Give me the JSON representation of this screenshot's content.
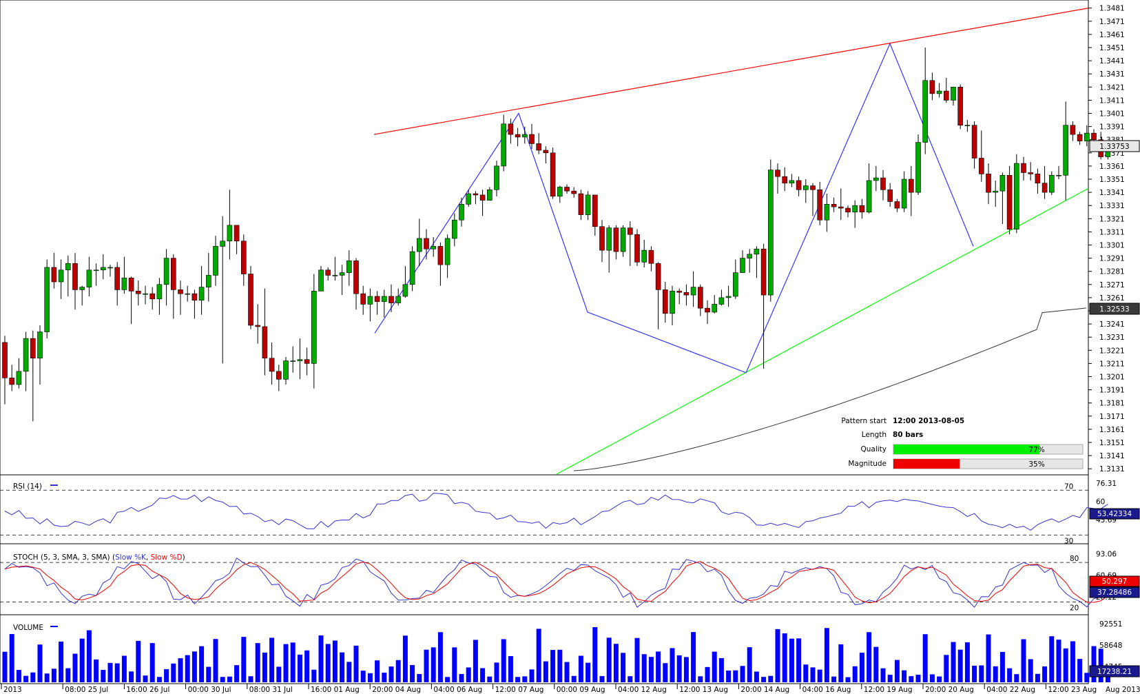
{
  "chart_data": {
    "type": "candlestick",
    "instrument_note": "",
    "price_axis": {
      "ticks": [
        "1.3481",
        "1.3471",
        "1.3461",
        "1.3451",
        "1.3441",
        "1.3431",
        "1.3421",
        "1.3411",
        "1.3401",
        "1.3391",
        "1.3381",
        "1.3371",
        "1.3361",
        "1.3351",
        "1.3341",
        "1.3331",
        "1.3321",
        "1.3311",
        "1.3301",
        "1.3291",
        "1.3281",
        "1.3271",
        "1.3261",
        "1.3251",
        "1.3241",
        "1.3231",
        "1.3221",
        "1.3211",
        "1.3201",
        "1.3191",
        "1.3181",
        "1.3171",
        "1.3161",
        "1.3151",
        "1.3141",
        "1.3131"
      ],
      "range": [
        1.3129,
        1.3484
      ],
      "current_price_label": "1.33753",
      "sma_label": "1.32533"
    },
    "time_axis": {
      "labels": [
        "2013",
        "08:00 25 Jul",
        "16:00 26 Jul",
        "00:00 30 Jul",
        "08:00 31 Jul",
        "16:00 01 Aug",
        "20:00 04 Aug",
        "04:00 06 Aug",
        "12:00 07 Aug",
        "00:00 09 Aug",
        "04:00 12 Aug",
        "12:00 13 Aug",
        "20:00 14 Aug",
        "04:00 16 Aug",
        "12:00 19 Aug",
        "20:00 20 Aug",
        "04:00 22 Aug",
        "12:00 23 Aug"
      ],
      "end_label": "Aug 2013"
    },
    "candles": [
      [
        1.3227,
        1.32,
        1.3232,
        1.318
      ],
      [
        1.32,
        1.3195,
        1.321,
        1.319
      ],
      [
        1.3195,
        1.3205,
        1.3215,
        1.3192
      ],
      [
        1.3205,
        1.323,
        1.3235,
        1.319
      ],
      [
        1.323,
        1.3215,
        1.3236,
        1.3167
      ],
      [
        1.3215,
        1.3235,
        1.324,
        1.3195
      ],
      [
        1.3235,
        1.3284,
        1.329,
        1.323
      ],
      [
        1.3284,
        1.3273,
        1.3295,
        1.3268
      ],
      [
        1.3273,
        1.3282,
        1.329,
        1.326
      ],
      [
        1.3282,
        1.3287,
        1.3293,
        1.3262
      ],
      [
        1.3287,
        1.3267,
        1.3295,
        1.3252
      ],
      [
        1.3267,
        1.3269,
        1.327,
        1.3255
      ],
      [
        1.3269,
        1.3282,
        1.3292,
        1.3262
      ],
      [
        1.3282,
        1.3282,
        1.3287,
        1.327
      ],
      [
        1.3282,
        1.3284,
        1.3294,
        1.3275
      ],
      [
        1.3284,
        1.3284,
        1.3286,
        1.3277
      ],
      [
        1.3284,
        1.3267,
        1.3288,
        1.3255
      ],
      [
        1.3267,
        1.3276,
        1.3292,
        1.3264
      ],
      [
        1.3276,
        1.3266,
        1.3277,
        1.3241
      ],
      [
        1.3266,
        1.3264,
        1.3274,
        1.3255
      ],
      [
        1.3264,
        1.3264,
        1.327,
        1.3256
      ],
      [
        1.3264,
        1.326,
        1.3269,
        1.3252
      ],
      [
        1.326,
        1.3271,
        1.3276,
        1.3248
      ],
      [
        1.3271,
        1.3291,
        1.3298,
        1.3255
      ],
      [
        1.3291,
        1.3267,
        1.3294,
        1.3245
      ],
      [
        1.3267,
        1.3264,
        1.3274,
        1.3248
      ],
      [
        1.3264,
        1.3264,
        1.327,
        1.3258
      ],
      [
        1.3264,
        1.3259,
        1.3267,
        1.3245
      ],
      [
        1.3259,
        1.3269,
        1.3285,
        1.3248
      ],
      [
        1.3269,
        1.3278,
        1.3295,
        1.3258
      ],
      [
        1.3278,
        1.33,
        1.3308,
        1.327
      ],
      [
        1.33,
        1.3304,
        1.3323,
        1.3211
      ],
      [
        1.3304,
        1.3316,
        1.3343,
        1.329
      ],
      [
        1.3316,
        1.3304,
        1.3313,
        1.3294
      ],
      [
        1.3304,
        1.3279,
        1.3309,
        1.327
      ],
      [
        1.3279,
        1.324,
        1.3285,
        1.3237
      ],
      [
        1.324,
        1.3239,
        1.3256,
        1.3226
      ],
      [
        1.3239,
        1.3215,
        1.3268,
        1.3202
      ],
      [
        1.3215,
        1.3205,
        1.3227,
        1.3195
      ],
      [
        1.3205,
        1.3199,
        1.321,
        1.319
      ],
      [
        1.3199,
        1.3213,
        1.3216,
        1.3195
      ],
      [
        1.3213,
        1.3213,
        1.3224,
        1.3204
      ],
      [
        1.3213,
        1.3214,
        1.323,
        1.3199
      ],
      [
        1.3214,
        1.3211,
        1.3223,
        1.3202
      ],
      [
        1.3211,
        1.3266,
        1.3279,
        1.3192
      ],
      [
        1.3266,
        1.3282,
        1.3285,
        1.3266
      ],
      [
        1.3282,
        1.3278,
        1.3284,
        1.3274
      ],
      [
        1.3278,
        1.3278,
        1.3292,
        1.3274
      ],
      [
        1.3278,
        1.328,
        1.3286,
        1.3263
      ],
      [
        1.328,
        1.3289,
        1.3297,
        1.327
      ],
      [
        1.3289,
        1.3264,
        1.3291,
        1.3252
      ],
      [
        1.3264,
        1.3256,
        1.327,
        1.3248
      ],
      [
        1.3256,
        1.3262,
        1.3268,
        1.3243
      ],
      [
        1.3262,
        1.3258,
        1.3266,
        1.3248
      ],
      [
        1.3258,
        1.3262,
        1.3267,
        1.3246
      ],
      [
        1.3262,
        1.3257,
        1.3271,
        1.325
      ],
      [
        1.3257,
        1.3262,
        1.3268,
        1.3255
      ],
      [
        1.3262,
        1.3271,
        1.3285,
        1.3261
      ],
      [
        1.3271,
        1.3296,
        1.33,
        1.3266
      ],
      [
        1.3296,
        1.3306,
        1.3321,
        1.3285
      ],
      [
        1.3306,
        1.3298,
        1.3313,
        1.329
      ],
      [
        1.3298,
        1.33,
        1.3307,
        1.3292
      ],
      [
        1.33,
        1.3286,
        1.3303,
        1.327
      ],
      [
        1.3286,
        1.3306,
        1.3309,
        1.3276
      ],
      [
        1.3306,
        1.332,
        1.3325,
        1.33
      ],
      [
        1.332,
        1.3332,
        1.3337,
        1.3315
      ],
      [
        1.3332,
        1.334,
        1.3343,
        1.333
      ],
      [
        1.334,
        1.3339,
        1.3342,
        1.3332
      ],
      [
        1.3339,
        1.3335,
        1.3343,
        1.3323
      ],
      [
        1.3335,
        1.3343,
        1.3345,
        1.3335
      ],
      [
        1.3343,
        1.3361,
        1.3365,
        1.3338
      ],
      [
        1.3361,
        1.3393,
        1.34,
        1.3357
      ],
      [
        1.3393,
        1.3385,
        1.3397,
        1.3378
      ],
      [
        1.3385,
        1.3383,
        1.339,
        1.3376
      ],
      [
        1.3383,
        1.3385,
        1.3391,
        1.3378
      ],
      [
        1.3385,
        1.3378,
        1.3393,
        1.3374
      ],
      [
        1.3378,
        1.3373,
        1.3386,
        1.337
      ],
      [
        1.3373,
        1.3371,
        1.3376,
        1.3363
      ],
      [
        1.3371,
        1.3338,
        1.3375,
        1.3336
      ],
      [
        1.3338,
        1.3345,
        1.3346,
        1.3333
      ],
      [
        1.3345,
        1.3342,
        1.3347,
        1.334
      ],
      [
        1.3342,
        1.334,
        1.3345,
        1.3337
      ],
      [
        1.334,
        1.3324,
        1.3343,
        1.332
      ],
      [
        1.3324,
        1.3339,
        1.3342,
        1.332
      ],
      [
        1.3339,
        1.3315,
        1.3337,
        1.3308
      ],
      [
        1.3315,
        1.3297,
        1.332,
        1.3288
      ],
      [
        1.3297,
        1.3314,
        1.3316,
        1.328
      ],
      [
        1.3314,
        1.3296,
        1.3316,
        1.329
      ],
      [
        1.3296,
        1.3314,
        1.3316,
        1.3292
      ],
      [
        1.3314,
        1.3309,
        1.3319,
        1.3285
      ],
      [
        1.3309,
        1.3288,
        1.3313,
        1.3285
      ],
      [
        1.3288,
        1.3297,
        1.3305,
        1.3284
      ],
      [
        1.3297,
        1.3287,
        1.33,
        1.3281
      ],
      [
        1.3287,
        1.3267,
        1.3288,
        1.3237
      ],
      [
        1.3267,
        1.3249,
        1.3273,
        1.3242
      ],
      [
        1.3249,
        1.3266,
        1.327,
        1.324
      ],
      [
        1.3266,
        1.3265,
        1.3268,
        1.3256
      ],
      [
        1.3265,
        1.3263,
        1.3271,
        1.3255
      ],
      [
        1.3263,
        1.3269,
        1.3281,
        1.3254
      ],
      [
        1.3269,
        1.3253,
        1.3271,
        1.3247
      ],
      [
        1.3253,
        1.325,
        1.3259,
        1.3241
      ],
      [
        1.325,
        1.3256,
        1.3263,
        1.3249
      ],
      [
        1.3256,
        1.3261,
        1.3267,
        1.3255
      ],
      [
        1.3261,
        1.3262,
        1.327,
        1.3254
      ],
      [
        1.3262,
        1.328,
        1.329,
        1.326
      ],
      [
        1.328,
        1.3291,
        1.3297,
        1.328
      ],
      [
        1.3291,
        1.3294,
        1.3298,
        1.328
      ],
      [
        1.3294,
        1.3298,
        1.33,
        1.3276
      ],
      [
        1.3298,
        1.3263,
        1.3302,
        1.3207
      ],
      [
        1.3263,
        1.3358,
        1.3366,
        1.3258
      ],
      [
        1.3358,
        1.3353,
        1.3363,
        1.334
      ],
      [
        1.3353,
        1.3348,
        1.336,
        1.3342
      ],
      [
        1.3348,
        1.335,
        1.3355,
        1.3345
      ],
      [
        1.335,
        1.3343,
        1.3353,
        1.3338
      ],
      [
        1.3343,
        1.3346,
        1.3351,
        1.3333
      ],
      [
        1.3346,
        1.3343,
        1.3348,
        1.3323
      ],
      [
        1.3343,
        1.332,
        1.3349,
        1.3316
      ],
      [
        1.332,
        1.3332,
        1.334,
        1.3311
      ],
      [
        1.3332,
        1.333,
        1.3337,
        1.3326
      ],
      [
        1.333,
        1.3329,
        1.3344,
        1.332
      ],
      [
        1.3329,
        1.3326,
        1.3331,
        1.3322
      ],
      [
        1.3326,
        1.3331,
        1.3335,
        1.3314
      ],
      [
        1.3331,
        1.3326,
        1.3336,
        1.3321
      ],
      [
        1.3326,
        1.335,
        1.3363,
        1.3325
      ],
      [
        1.335,
        1.3352,
        1.3361,
        1.3342
      ],
      [
        1.3352,
        1.3343,
        1.3358,
        1.3335
      ],
      [
        1.3343,
        1.3334,
        1.3348,
        1.333
      ],
      [
        1.3334,
        1.3329,
        1.3336,
        1.3326
      ],
      [
        1.3329,
        1.3351,
        1.3357,
        1.3326
      ],
      [
        1.3351,
        1.3341,
        1.3361,
        1.3323
      ],
      [
        1.3341,
        1.3379,
        1.3385,
        1.3339
      ],
      [
        1.3379,
        1.3426,
        1.3451,
        1.337
      ],
      [
        1.3426,
        1.3416,
        1.3432,
        1.3411
      ],
      [
        1.3416,
        1.3418,
        1.3424,
        1.3413
      ],
      [
        1.3418,
        1.3411,
        1.3428,
        1.3409
      ],
      [
        1.3411,
        1.3421,
        1.3421,
        1.3407
      ],
      [
        1.3421,
        1.3392,
        1.3423,
        1.3389
      ],
      [
        1.3392,
        1.3392,
        1.3396,
        1.3387
      ],
      [
        1.3392,
        1.3367,
        1.3395,
        1.3359
      ],
      [
        1.3367,
        1.3355,
        1.3388,
        1.3349
      ],
      [
        1.3355,
        1.3341,
        1.3363,
        1.3332
      ],
      [
        1.3341,
        1.3342,
        1.335,
        1.333
      ],
      [
        1.3342,
        1.3354,
        1.3356,
        1.3317
      ],
      [
        1.3354,
        1.3313,
        1.3361,
        1.3309
      ],
      [
        1.3313,
        1.3363,
        1.337,
        1.331
      ],
      [
        1.3363,
        1.3356,
        1.3368,
        1.335
      ],
      [
        1.3356,
        1.3355,
        1.3364,
        1.335
      ],
      [
        1.3355,
        1.3348,
        1.3359,
        1.334
      ],
      [
        1.3348,
        1.3341,
        1.3361,
        1.3336
      ],
      [
        1.3341,
        1.3354,
        1.3357,
        1.3339
      ],
      [
        1.3354,
        1.3354,
        1.3361,
        1.3351
      ],
      [
        1.3354,
        1.3392,
        1.341,
        1.3335
      ],
      [
        1.3392,
        1.3385,
        1.3395,
        1.338
      ],
      [
        1.3385,
        1.338,
        1.3387,
        1.3377
      ],
      [
        1.338,
        1.3386,
        1.3392,
        1.3376
      ],
      [
        1.3386,
        1.3381,
        1.3389,
        1.3372
      ],
      [
        1.3381,
        1.3368,
        1.3387,
        1.3366
      ],
      [
        1.3368,
        1.3375,
        1.338,
        1.3366
      ]
    ],
    "pattern": {
      "upper_line_color": "#ff0000",
      "lower_line_color": "#00ff00",
      "zigzag_color": "#3333ff",
      "zigzag_prices": [
        1.3234,
        1.3401,
        1.325,
        1.3204,
        1.3454,
        1.33
      ]
    },
    "sma": {
      "color": "#333333",
      "end_value": 1.32533
    },
    "info_box": {
      "pattern_start_label": "Pattern start",
      "pattern_start_value": "12:00 2013-08-05",
      "length_label": "Length",
      "length_value": "80 bars",
      "quality_label": "Quality",
      "quality_pct": 77,
      "quality_text": "77%",
      "magnitude_label": "Magnitude",
      "magnitude_pct": 35,
      "magnitude_text": "35%",
      "quality_color": "#00ee00",
      "magnitude_color": "#ee0000"
    },
    "rsi": {
      "title": "RSI (14)",
      "levels": [
        "70",
        "30"
      ],
      "axis_labels": [
        "76.31",
        "60",
        "43.69"
      ],
      "current": "53.42334",
      "range": [
        24,
        80
      ],
      "color": "#3333cc"
    },
    "stoch": {
      "title_prefix": "STOCH (5, 3, SMA, 3, SMA)",
      "k_label": "Slow %K",
      "d_label": "Slow %D",
      "levels": [
        "80",
        "20"
      ],
      "axis_labels": [
        "93.06",
        "60.69",
        "28.12"
      ],
      "current_d": "50.297",
      "current_k": "37.28486",
      "range": [
        5,
        102
      ],
      "k_color": "#3333cc",
      "d_color": "#ee0000"
    },
    "volume": {
      "title": "VOLUME",
      "axis_labels": [
        "92551",
        "58648",
        "24745"
      ],
      "current": "17238.21",
      "max": 100000,
      "color": "#0000ff"
    }
  }
}
